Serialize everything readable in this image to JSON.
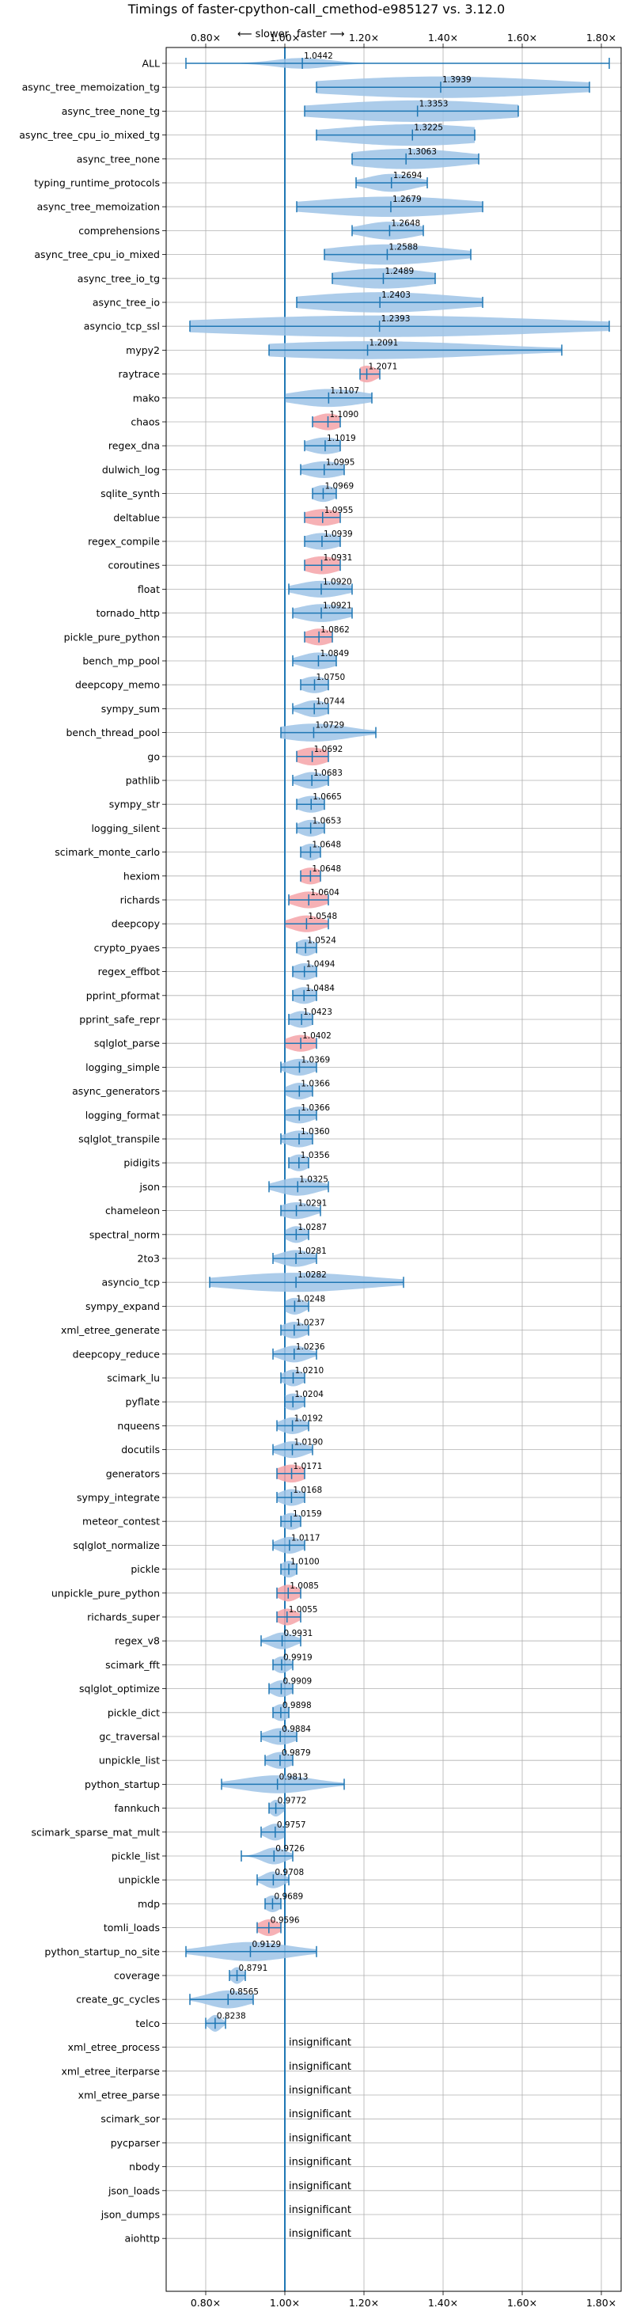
{
  "chart_data": {
    "type": "violin",
    "title": "Timings of faster-cpython-call_cmethod-e985127 vs. 3.12.0",
    "direction_labels": {
      "slower": "⟵ slower",
      "faster": "faster ⟶"
    },
    "xlim": [
      0.7,
      1.85
    ],
    "xticks": [
      0.8,
      1.0,
      1.2,
      1.4,
      1.6,
      1.8
    ],
    "xtick_labels": [
      "0.80×",
      "1.00×",
      "1.20×",
      "1.40×",
      "1.60×",
      "1.80×"
    ],
    "grid": true,
    "colors": {
      "normal": "#9dc3e6",
      "highlight": "#f4a3a8",
      "axis": "#1f77b4"
    },
    "insignificant_text": "insignificant",
    "benchmarks": [
      {
        "name": "ALL",
        "value": 1.0442,
        "label": "1.0442",
        "lo": 0.75,
        "hi": 1.82,
        "spread": 0.07,
        "height": 0.45
      },
      {
        "name": "async_tree_memoization_tg",
        "value": 1.3939,
        "label": "1.3939",
        "lo": 1.08,
        "hi": 1.77,
        "spread": 0.3,
        "height": 0.9
      },
      {
        "name": "async_tree_none_tg",
        "value": 1.3353,
        "label": "1.3353",
        "lo": 1.05,
        "hi": 1.59,
        "spread": 0.25,
        "height": 0.9
      },
      {
        "name": "async_tree_cpu_io_mixed_tg",
        "value": 1.3225,
        "label": "1.3225",
        "lo": 1.08,
        "hi": 1.48,
        "spread": 0.2,
        "height": 0.9
      },
      {
        "name": "async_tree_none",
        "value": 1.3063,
        "label": "1.3063",
        "lo": 1.17,
        "hi": 1.49,
        "spread": 0.15,
        "height": 0.85
      },
      {
        "name": "typing_runtime_protocols",
        "value": 1.2694,
        "label": "1.2694",
        "lo": 1.18,
        "hi": 1.36,
        "spread": 0.06,
        "height": 0.75
      },
      {
        "name": "async_tree_memoization",
        "value": 1.2679,
        "label": "1.2679",
        "lo": 1.03,
        "hi": 1.5,
        "spread": 0.2,
        "height": 0.85
      },
      {
        "name": "comprehensions",
        "value": 1.2648,
        "label": "1.2648",
        "lo": 1.17,
        "hi": 1.35,
        "spread": 0.07,
        "height": 0.75
      },
      {
        "name": "async_tree_cpu_io_mixed",
        "value": 1.2588,
        "label": "1.2588",
        "lo": 1.1,
        "hi": 1.47,
        "spread": 0.15,
        "height": 0.85
      },
      {
        "name": "async_tree_io_tg",
        "value": 1.2489,
        "label": "1.2489",
        "lo": 1.12,
        "hi": 1.38,
        "spread": 0.12,
        "height": 0.85
      },
      {
        "name": "async_tree_io",
        "value": 1.2403,
        "label": "1.2403",
        "lo": 1.03,
        "hi": 1.5,
        "spread": 0.2,
        "height": 0.85
      },
      {
        "name": "asyncio_tcp_ssl",
        "value": 1.2393,
        "label": "1.2393",
        "lo": 0.76,
        "hi": 1.82,
        "spread": 0.45,
        "height": 0.9
      },
      {
        "name": "mypy2",
        "value": 1.2091,
        "label": "1.2091",
        "lo": 0.96,
        "hi": 1.7,
        "spread": 0.3,
        "height": 0.75
      },
      {
        "name": "raytrace",
        "value": 1.2071,
        "label": "1.2071",
        "lo": 1.19,
        "hi": 1.24,
        "spread": 0.025,
        "height": 0.7,
        "highlight": true
      },
      {
        "name": "mako",
        "value": 1.1107,
        "label": "1.1107",
        "lo": 1.0,
        "hi": 1.22,
        "spread": 0.09,
        "height": 0.75
      },
      {
        "name": "chaos",
        "value": 1.109,
        "label": "1.1090",
        "lo": 1.07,
        "hi": 1.14,
        "spread": 0.035,
        "height": 0.7,
        "highlight": true
      },
      {
        "name": "regex_dna",
        "value": 1.1019,
        "label": "1.1019",
        "lo": 1.05,
        "hi": 1.14,
        "spread": 0.045,
        "height": 0.7
      },
      {
        "name": "dulwich_log",
        "value": 1.0995,
        "label": "1.0995",
        "lo": 1.04,
        "hi": 1.15,
        "spread": 0.05,
        "height": 0.7
      },
      {
        "name": "sqlite_synth",
        "value": 1.0969,
        "label": "1.0969",
        "lo": 1.07,
        "hi": 1.13,
        "spread": 0.03,
        "height": 0.7
      },
      {
        "name": "deltablue",
        "value": 1.0955,
        "label": "1.0955",
        "lo": 1.05,
        "hi": 1.14,
        "spread": 0.045,
        "height": 0.7,
        "highlight": true
      },
      {
        "name": "regex_compile",
        "value": 1.0939,
        "label": "1.0939",
        "lo": 1.05,
        "hi": 1.14,
        "spread": 0.045,
        "height": 0.7
      },
      {
        "name": "coroutines",
        "value": 1.0931,
        "label": "1.0931",
        "lo": 1.05,
        "hi": 1.14,
        "spread": 0.045,
        "height": 0.75,
        "highlight": true
      },
      {
        "name": "float",
        "value": 1.092,
        "label": "1.0920",
        "lo": 1.01,
        "hi": 1.17,
        "spread": 0.06,
        "height": 0.7
      },
      {
        "name": "tornado_http",
        "value": 1.0921,
        "label": "1.0921",
        "lo": 1.02,
        "hi": 1.17,
        "spread": 0.06,
        "height": 0.75
      },
      {
        "name": "pickle_pure_python",
        "value": 1.0862,
        "label": "1.0862",
        "lo": 1.05,
        "hi": 1.12,
        "spread": 0.035,
        "height": 0.7,
        "highlight": true
      },
      {
        "name": "bench_mp_pool",
        "value": 1.0849,
        "label": "1.0849",
        "lo": 1.02,
        "hi": 1.13,
        "spread": 0.045,
        "height": 0.7
      },
      {
        "name": "deepcopy_memo",
        "value": 1.075,
        "label": "1.0750",
        "lo": 1.04,
        "hi": 1.11,
        "spread": 0.035,
        "height": 0.7
      },
      {
        "name": "sympy_sum",
        "value": 1.0744,
        "label": "1.0744",
        "lo": 1.02,
        "hi": 1.11,
        "spread": 0.035,
        "height": 0.7
      },
      {
        "name": "bench_thread_pool",
        "value": 1.0729,
        "label": "1.0729",
        "lo": 0.99,
        "hi": 1.23,
        "spread": 0.09,
        "height": 0.75
      },
      {
        "name": "go",
        "value": 1.0692,
        "label": "1.0692",
        "lo": 1.03,
        "hi": 1.11,
        "spread": 0.04,
        "height": 0.75,
        "highlight": true
      },
      {
        "name": "pathlib",
        "value": 1.0683,
        "label": "1.0683",
        "lo": 1.02,
        "hi": 1.11,
        "spread": 0.035,
        "height": 0.7
      },
      {
        "name": "sympy_str",
        "value": 1.0665,
        "label": "1.0665",
        "lo": 1.03,
        "hi": 1.1,
        "spread": 0.035,
        "height": 0.7
      },
      {
        "name": "logging_silent",
        "value": 1.0653,
        "label": "1.0653",
        "lo": 1.03,
        "hi": 1.1,
        "spread": 0.03,
        "height": 0.7
      },
      {
        "name": "scimark_monte_carlo",
        "value": 1.0648,
        "label": "1.0648",
        "lo": 1.04,
        "hi": 1.09,
        "spread": 0.025,
        "height": 0.7
      },
      {
        "name": "hexiom",
        "value": 1.0648,
        "label": "1.0648",
        "lo": 1.04,
        "hi": 1.09,
        "spread": 0.03,
        "height": 0.7,
        "highlight": true
      },
      {
        "name": "richards",
        "value": 1.0604,
        "label": "1.0604",
        "lo": 1.01,
        "hi": 1.11,
        "spread": 0.04,
        "height": 0.7,
        "highlight": true
      },
      {
        "name": "deepcopy",
        "value": 1.0548,
        "label": "1.0548",
        "lo": 1.0,
        "hi": 1.11,
        "spread": 0.04,
        "height": 0.7,
        "highlight": true
      },
      {
        "name": "crypto_pyaes",
        "value": 1.0524,
        "label": "1.0524",
        "lo": 1.03,
        "hi": 1.08,
        "spread": 0.025,
        "height": 0.7
      },
      {
        "name": "regex_effbot",
        "value": 1.0494,
        "label": "1.0494",
        "lo": 1.02,
        "hi": 1.08,
        "spread": 0.03,
        "height": 0.7
      },
      {
        "name": "pprint_pformat",
        "value": 1.0484,
        "label": "1.0484",
        "lo": 1.02,
        "hi": 1.08,
        "spread": 0.03,
        "height": 0.7
      },
      {
        "name": "pprint_safe_repr",
        "value": 1.0423,
        "label": "1.0423",
        "lo": 1.01,
        "hi": 1.07,
        "spread": 0.03,
        "height": 0.7
      },
      {
        "name": "sqlglot_parse",
        "value": 1.0402,
        "label": "1.0402",
        "lo": 1.0,
        "hi": 1.08,
        "spread": 0.035,
        "height": 0.7,
        "highlight": true
      },
      {
        "name": "logging_simple",
        "value": 1.0369,
        "label": "1.0369",
        "lo": 0.99,
        "hi": 1.08,
        "spread": 0.035,
        "height": 0.7
      },
      {
        "name": "async_generators",
        "value": 1.0366,
        "label": "1.0366",
        "lo": 1.0,
        "hi": 1.07,
        "spread": 0.03,
        "height": 0.7
      },
      {
        "name": "logging_format",
        "value": 1.0366,
        "label": "1.0366",
        "lo": 1.0,
        "hi": 1.08,
        "spread": 0.035,
        "height": 0.7
      },
      {
        "name": "sqlglot_transpile",
        "value": 1.036,
        "label": "1.0360",
        "lo": 0.99,
        "hi": 1.07,
        "spread": 0.035,
        "height": 0.7
      },
      {
        "name": "pidigits",
        "value": 1.0356,
        "label": "1.0356",
        "lo": 1.01,
        "hi": 1.06,
        "spread": 0.025,
        "height": 0.7
      },
      {
        "name": "json",
        "value": 1.0325,
        "label": "1.0325",
        "lo": 0.96,
        "hi": 1.11,
        "spread": 0.05,
        "height": 0.75
      },
      {
        "name": "chameleon",
        "value": 1.0291,
        "label": "1.0291",
        "lo": 0.99,
        "hi": 1.09,
        "spread": 0.04,
        "height": 0.7
      },
      {
        "name": "spectral_norm",
        "value": 1.0287,
        "label": "1.0287",
        "lo": 1.0,
        "hi": 1.06,
        "spread": 0.025,
        "height": 0.7
      },
      {
        "name": "2to3",
        "value": 1.0281,
        "label": "1.0281",
        "lo": 0.97,
        "hi": 1.08,
        "spread": 0.04,
        "height": 0.7
      },
      {
        "name": "asyncio_tcp",
        "value": 1.0282,
        "label": "1.0282",
        "lo": 0.81,
        "hi": 1.3,
        "spread": 0.18,
        "height": 0.8
      },
      {
        "name": "sympy_expand",
        "value": 1.0248,
        "label": "1.0248",
        "lo": 1.0,
        "hi": 1.06,
        "spread": 0.025,
        "height": 0.7
      },
      {
        "name": "xml_etree_generate",
        "value": 1.0237,
        "label": "1.0237",
        "lo": 0.99,
        "hi": 1.06,
        "spread": 0.03,
        "height": 0.7
      },
      {
        "name": "deepcopy_reduce",
        "value": 1.0236,
        "label": "1.0236",
        "lo": 0.97,
        "hi": 1.08,
        "spread": 0.035,
        "height": 0.7
      },
      {
        "name": "scimark_lu",
        "value": 1.021,
        "label": "1.0210",
        "lo": 0.99,
        "hi": 1.05,
        "spread": 0.025,
        "height": 0.7
      },
      {
        "name": "pyflate",
        "value": 1.0204,
        "label": "1.0204",
        "lo": 1.0,
        "hi": 1.05,
        "spread": 0.025,
        "height": 0.7
      },
      {
        "name": "nqueens",
        "value": 1.0192,
        "label": "1.0192",
        "lo": 0.98,
        "hi": 1.06,
        "spread": 0.03,
        "height": 0.7
      },
      {
        "name": "docutils",
        "value": 1.019,
        "label": "1.0190",
        "lo": 0.97,
        "hi": 1.07,
        "spread": 0.035,
        "height": 0.7
      },
      {
        "name": "generators",
        "value": 1.0171,
        "label": "1.0171",
        "lo": 0.98,
        "hi": 1.05,
        "spread": 0.035,
        "height": 0.75,
        "highlight": true
      },
      {
        "name": "sympy_integrate",
        "value": 1.0168,
        "label": "1.0168",
        "lo": 0.98,
        "hi": 1.05,
        "spread": 0.03,
        "height": 0.7
      },
      {
        "name": "meteor_contest",
        "value": 1.0159,
        "label": "1.0159",
        "lo": 0.99,
        "hi": 1.04,
        "spread": 0.025,
        "height": 0.7
      },
      {
        "name": "sqlglot_normalize",
        "value": 1.0117,
        "label": "1.0117",
        "lo": 0.97,
        "hi": 1.05,
        "spread": 0.03,
        "height": 0.7
      },
      {
        "name": "pickle",
        "value": 1.01,
        "label": "1.0100",
        "lo": 0.99,
        "hi": 1.03,
        "spread": 0.02,
        "height": 0.7
      },
      {
        "name": "unpickle_pure_python",
        "value": 1.0085,
        "label": "1.0085",
        "lo": 0.98,
        "hi": 1.04,
        "spread": 0.025,
        "height": 0.7,
        "highlight": true
      },
      {
        "name": "richards_super",
        "value": 1.0055,
        "label": "1.0055",
        "lo": 0.98,
        "hi": 1.04,
        "spread": 0.025,
        "height": 0.7,
        "highlight": true
      },
      {
        "name": "regex_v8",
        "value": 0.9931,
        "label": "0.9931",
        "lo": 0.94,
        "hi": 1.04,
        "spread": 0.03,
        "height": 0.7
      },
      {
        "name": "scimark_fft",
        "value": 0.9919,
        "label": "0.9919",
        "lo": 0.97,
        "hi": 1.02,
        "spread": 0.02,
        "height": 0.7
      },
      {
        "name": "sqlglot_optimize",
        "value": 0.9909,
        "label": "0.9909",
        "lo": 0.96,
        "hi": 1.02,
        "spread": 0.025,
        "height": 0.7
      },
      {
        "name": "pickle_dict",
        "value": 0.9898,
        "label": "0.9898",
        "lo": 0.97,
        "hi": 1.01,
        "spread": 0.02,
        "height": 0.7
      },
      {
        "name": "gc_traversal",
        "value": 0.9884,
        "label": "0.9884",
        "lo": 0.94,
        "hi": 1.03,
        "spread": 0.035,
        "height": 0.7
      },
      {
        "name": "unpickle_list",
        "value": 0.9879,
        "label": "0.9879",
        "lo": 0.95,
        "hi": 1.02,
        "spread": 0.03,
        "height": 0.7
      },
      {
        "name": "python_startup",
        "value": 0.9813,
        "label": "0.9813",
        "lo": 0.84,
        "hi": 1.15,
        "spread": 0.09,
        "height": 0.75
      },
      {
        "name": "fannkuch",
        "value": 0.9772,
        "label": "0.9772",
        "lo": 0.96,
        "hi": 1.0,
        "spread": 0.015,
        "height": 0.7
      },
      {
        "name": "scimark_sparse_mat_mult",
        "value": 0.9757,
        "label": "0.9757",
        "lo": 0.94,
        "hi": 1.0,
        "spread": 0.025,
        "height": 0.7
      },
      {
        "name": "pickle_list",
        "value": 0.9726,
        "label": "0.9726",
        "lo": 0.89,
        "hi": 1.02,
        "spread": 0.03,
        "height": 0.7
      },
      {
        "name": "unpickle",
        "value": 0.9708,
        "label": "0.9708",
        "lo": 0.93,
        "hi": 1.01,
        "spread": 0.025,
        "height": 0.7
      },
      {
        "name": "mdp",
        "value": 0.9689,
        "label": "0.9689",
        "lo": 0.95,
        "hi": 0.99,
        "spread": 0.02,
        "height": 0.7
      },
      {
        "name": "tomli_loads",
        "value": 0.9596,
        "label": "0.9596",
        "lo": 0.93,
        "hi": 0.99,
        "spread": 0.025,
        "height": 0.7,
        "highlight": true
      },
      {
        "name": "python_startup_no_site",
        "value": 0.9129,
        "label": "0.9129",
        "lo": 0.75,
        "hi": 1.08,
        "spread": 0.1,
        "height": 0.8
      },
      {
        "name": "coverage",
        "value": 0.8791,
        "label": "0.8791",
        "lo": 0.86,
        "hi": 0.9,
        "spread": 0.015,
        "height": 0.7
      },
      {
        "name": "create_gc_cycles",
        "value": 0.8565,
        "label": "0.8565",
        "lo": 0.76,
        "hi": 0.92,
        "spread": 0.05,
        "height": 0.75
      },
      {
        "name": "telco",
        "value": 0.8238,
        "label": "0.8238",
        "lo": 0.8,
        "hi": 0.85,
        "spread": 0.015,
        "height": 0.7
      },
      {
        "name": "xml_etree_process",
        "insignificant": true
      },
      {
        "name": "xml_etree_iterparse",
        "insignificant": true
      },
      {
        "name": "xml_etree_parse",
        "insignificant": true
      },
      {
        "name": "scimark_sor",
        "insignificant": true
      },
      {
        "name": "pycparser",
        "insignificant": true
      },
      {
        "name": "nbody",
        "insignificant": true
      },
      {
        "name": "json_loads",
        "insignificant": true
      },
      {
        "name": "json_dumps",
        "insignificant": true
      },
      {
        "name": "aiohttp",
        "insignificant": true
      }
    ]
  }
}
